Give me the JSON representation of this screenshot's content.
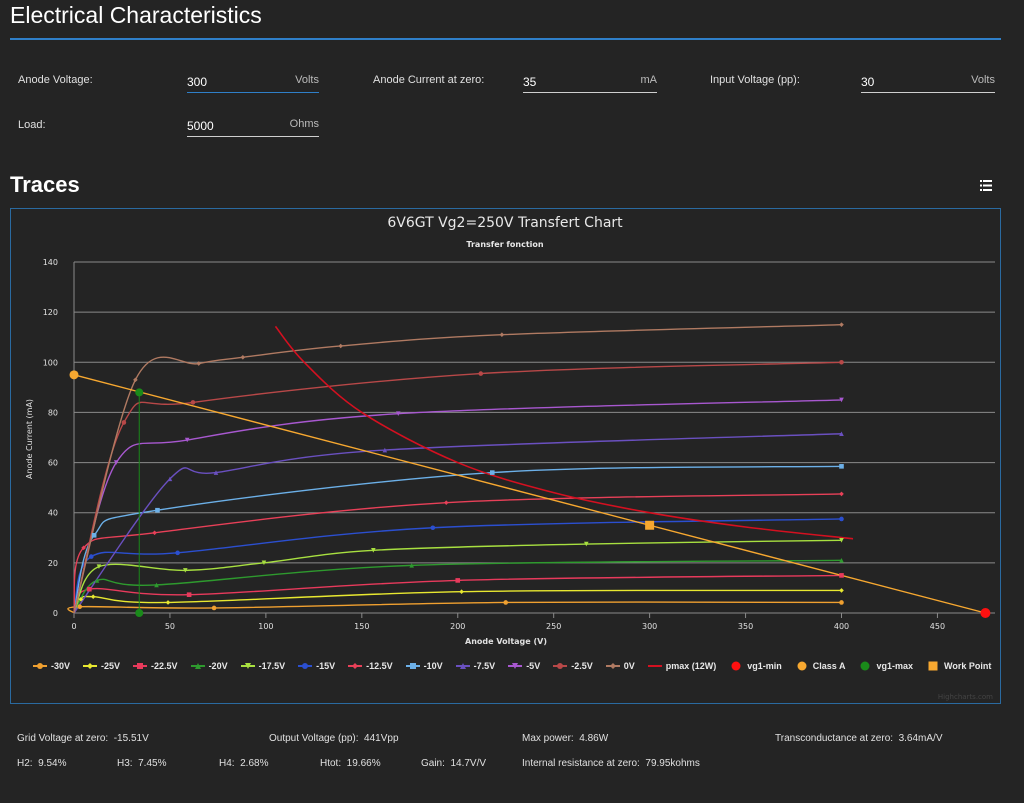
{
  "header": {
    "title": "Electrical Characteristics"
  },
  "form": {
    "anode_voltage": {
      "label": "Anode Voltage:",
      "value": "300",
      "unit": "Volts"
    },
    "anode_current": {
      "label": "Anode Current at zero:",
      "value": "35",
      "unit": "mA"
    },
    "input_voltage": {
      "label": "Input Voltage (pp):",
      "value": "30",
      "unit": "Volts"
    },
    "load": {
      "label": "Load:",
      "value": "5000",
      "unit": "Ohms"
    }
  },
  "traces": {
    "title": "Traces",
    "menu_icon": "hamburger-menu-icon"
  },
  "results": {
    "grid_voltage": "Grid Voltage at zero:  -15.51V",
    "output_voltage": "Output Voltage (pp):  441Vpp",
    "max_power": "Max power:  4.86W",
    "transconductance": "Transconductance at zero:  3.64mA/V",
    "h2": "H2:  9.54%",
    "h3": "H3:  7.45%",
    "h4": "H4:  2.68%",
    "htot": "Htot:  19.66%",
    "gain": "Gain:  14.7V/V",
    "internal_resistance": "Internal resistance at zero:  79.95kohms"
  },
  "chart_data": {
    "type": "line",
    "title": "6V6GT Vg2=250V Transfert Chart",
    "subtitle": "Transfer fonction",
    "xlabel": "Anode Voltage (V)",
    "ylabel": "Anode Current (mA)",
    "xlim": [
      0,
      480
    ],
    "ylim": [
      0,
      140
    ],
    "xticks": [
      "0",
      "50",
      "100",
      "150",
      "200",
      "250",
      "300",
      "350",
      "400",
      "450"
    ],
    "yticks": [
      "0",
      "20",
      "40",
      "60",
      "80",
      "100",
      "120",
      "140"
    ],
    "grid": true,
    "legend": "bottom",
    "credit": "Highcharts.com",
    "series": [
      {
        "name": "-30V",
        "color": "#f0a030",
        "marker": "circle",
        "points": [
          [
            0,
            0
          ],
          [
            3,
            2.5
          ],
          [
            73,
            2
          ],
          [
            225,
            4.2
          ],
          [
            400,
            4.2
          ]
        ]
      },
      {
        "name": "-25V",
        "color": "#e8e830",
        "marker": "diamond",
        "points": [
          [
            0,
            0
          ],
          [
            3.6,
            5.5
          ],
          [
            10,
            6.5
          ],
          [
            49,
            4.2
          ],
          [
            202,
            8.5
          ],
          [
            400,
            9
          ]
        ]
      },
      {
        "name": "-22.5V",
        "color": "#e83a5c",
        "marker": "square",
        "points": [
          [
            0,
            0
          ],
          [
            8,
            9.5
          ],
          [
            60,
            7.3
          ],
          [
            200,
            13
          ],
          [
            400,
            15
          ]
        ]
      },
      {
        "name": "-20V",
        "color": "#2e9a2e",
        "marker": "triangle",
        "points": [
          [
            0,
            0
          ],
          [
            12,
            13
          ],
          [
            43,
            11.2
          ],
          [
            176,
            19
          ],
          [
            400,
            21
          ]
        ]
      },
      {
        "name": "-17.5V",
        "color": "#a8e040",
        "marker": "triangle-down",
        "points": [
          [
            0,
            0
          ],
          [
            13,
            18.5
          ],
          [
            58,
            17
          ],
          [
            99,
            20
          ],
          [
            156,
            25
          ],
          [
            267,
            27.5
          ],
          [
            400,
            29
          ]
        ]
      },
      {
        "name": "-15V",
        "color": "#2b4fd0",
        "marker": "circle",
        "points": [
          [
            0,
            0
          ],
          [
            9,
            22.5
          ],
          [
            54,
            24
          ],
          [
            187,
            34
          ],
          [
            400,
            37.5
          ]
        ]
      },
      {
        "name": "-12.5V",
        "color": "#e84058",
        "marker": "diamond",
        "points": [
          [
            0,
            0
          ],
          [
            5,
            26
          ],
          [
            42,
            32
          ],
          [
            194,
            44
          ],
          [
            400,
            47.5
          ]
        ]
      },
      {
        "name": "-10V",
        "color": "#6cb0e8",
        "marker": "square",
        "points": [
          [
            0,
            0
          ],
          [
            10.5,
            31
          ],
          [
            43.5,
            41
          ],
          [
            218,
            56
          ],
          [
            400,
            58.5
          ]
        ]
      },
      {
        "name": "-7.5V",
        "color": "#6a50c0",
        "marker": "triangle",
        "points": [
          [
            0,
            0
          ],
          [
            50,
            53.5
          ],
          [
            74,
            56
          ],
          [
            162,
            65
          ],
          [
            400,
            71.5
          ]
        ]
      },
      {
        "name": "-5V",
        "color": "#a858d0",
        "marker": "triangle-down",
        "points": [
          [
            0,
            0
          ],
          [
            22,
            60
          ],
          [
            59,
            69
          ],
          [
            169,
            79.5
          ],
          [
            400,
            85
          ]
        ]
      },
      {
        "name": "-2.5V",
        "color": "#b84848",
        "marker": "circle",
        "points": [
          [
            0,
            0
          ],
          [
            26,
            76
          ],
          [
            62,
            84
          ],
          [
            212,
            95.5
          ],
          [
            400,
            100
          ]
        ]
      },
      {
        "name": "0V",
        "color": "#b07a62",
        "marker": "diamond",
        "points": [
          [
            0,
            0
          ],
          [
            32,
            93
          ],
          [
            65,
            99.5
          ],
          [
            88,
            102
          ],
          [
            139,
            106.5
          ],
          [
            223,
            111
          ],
          [
            400,
            115
          ]
        ]
      },
      {
        "name": "pmax (12W)",
        "color": "#d41020",
        "marker": "none",
        "points": [
          [
            105,
            114.3
          ],
          [
            120,
            100
          ],
          [
            150,
            80
          ],
          [
            200,
            60
          ],
          [
            250,
            48
          ],
          [
            300,
            40
          ],
          [
            350,
            34.3
          ],
          [
            406,
            29.6
          ]
        ]
      },
      {
        "name": "vg1-min",
        "color": "#ff1010",
        "marker": "circle",
        "points": [
          [
            475,
            0
          ]
        ]
      },
      {
        "name": "Class A",
        "color": "#f7a830",
        "marker": "circle",
        "points": [
          [
            0,
            95
          ],
          [
            475,
            0
          ]
        ]
      },
      {
        "name": "vg1-max",
        "color": "#1a8a1a",
        "marker": "circle",
        "points": [
          [
            34,
            88
          ],
          [
            34,
            0
          ]
        ]
      },
      {
        "name": "Work Point",
        "color": "#f7a830",
        "marker": "square",
        "points": [
          [
            300,
            35
          ]
        ]
      }
    ]
  }
}
